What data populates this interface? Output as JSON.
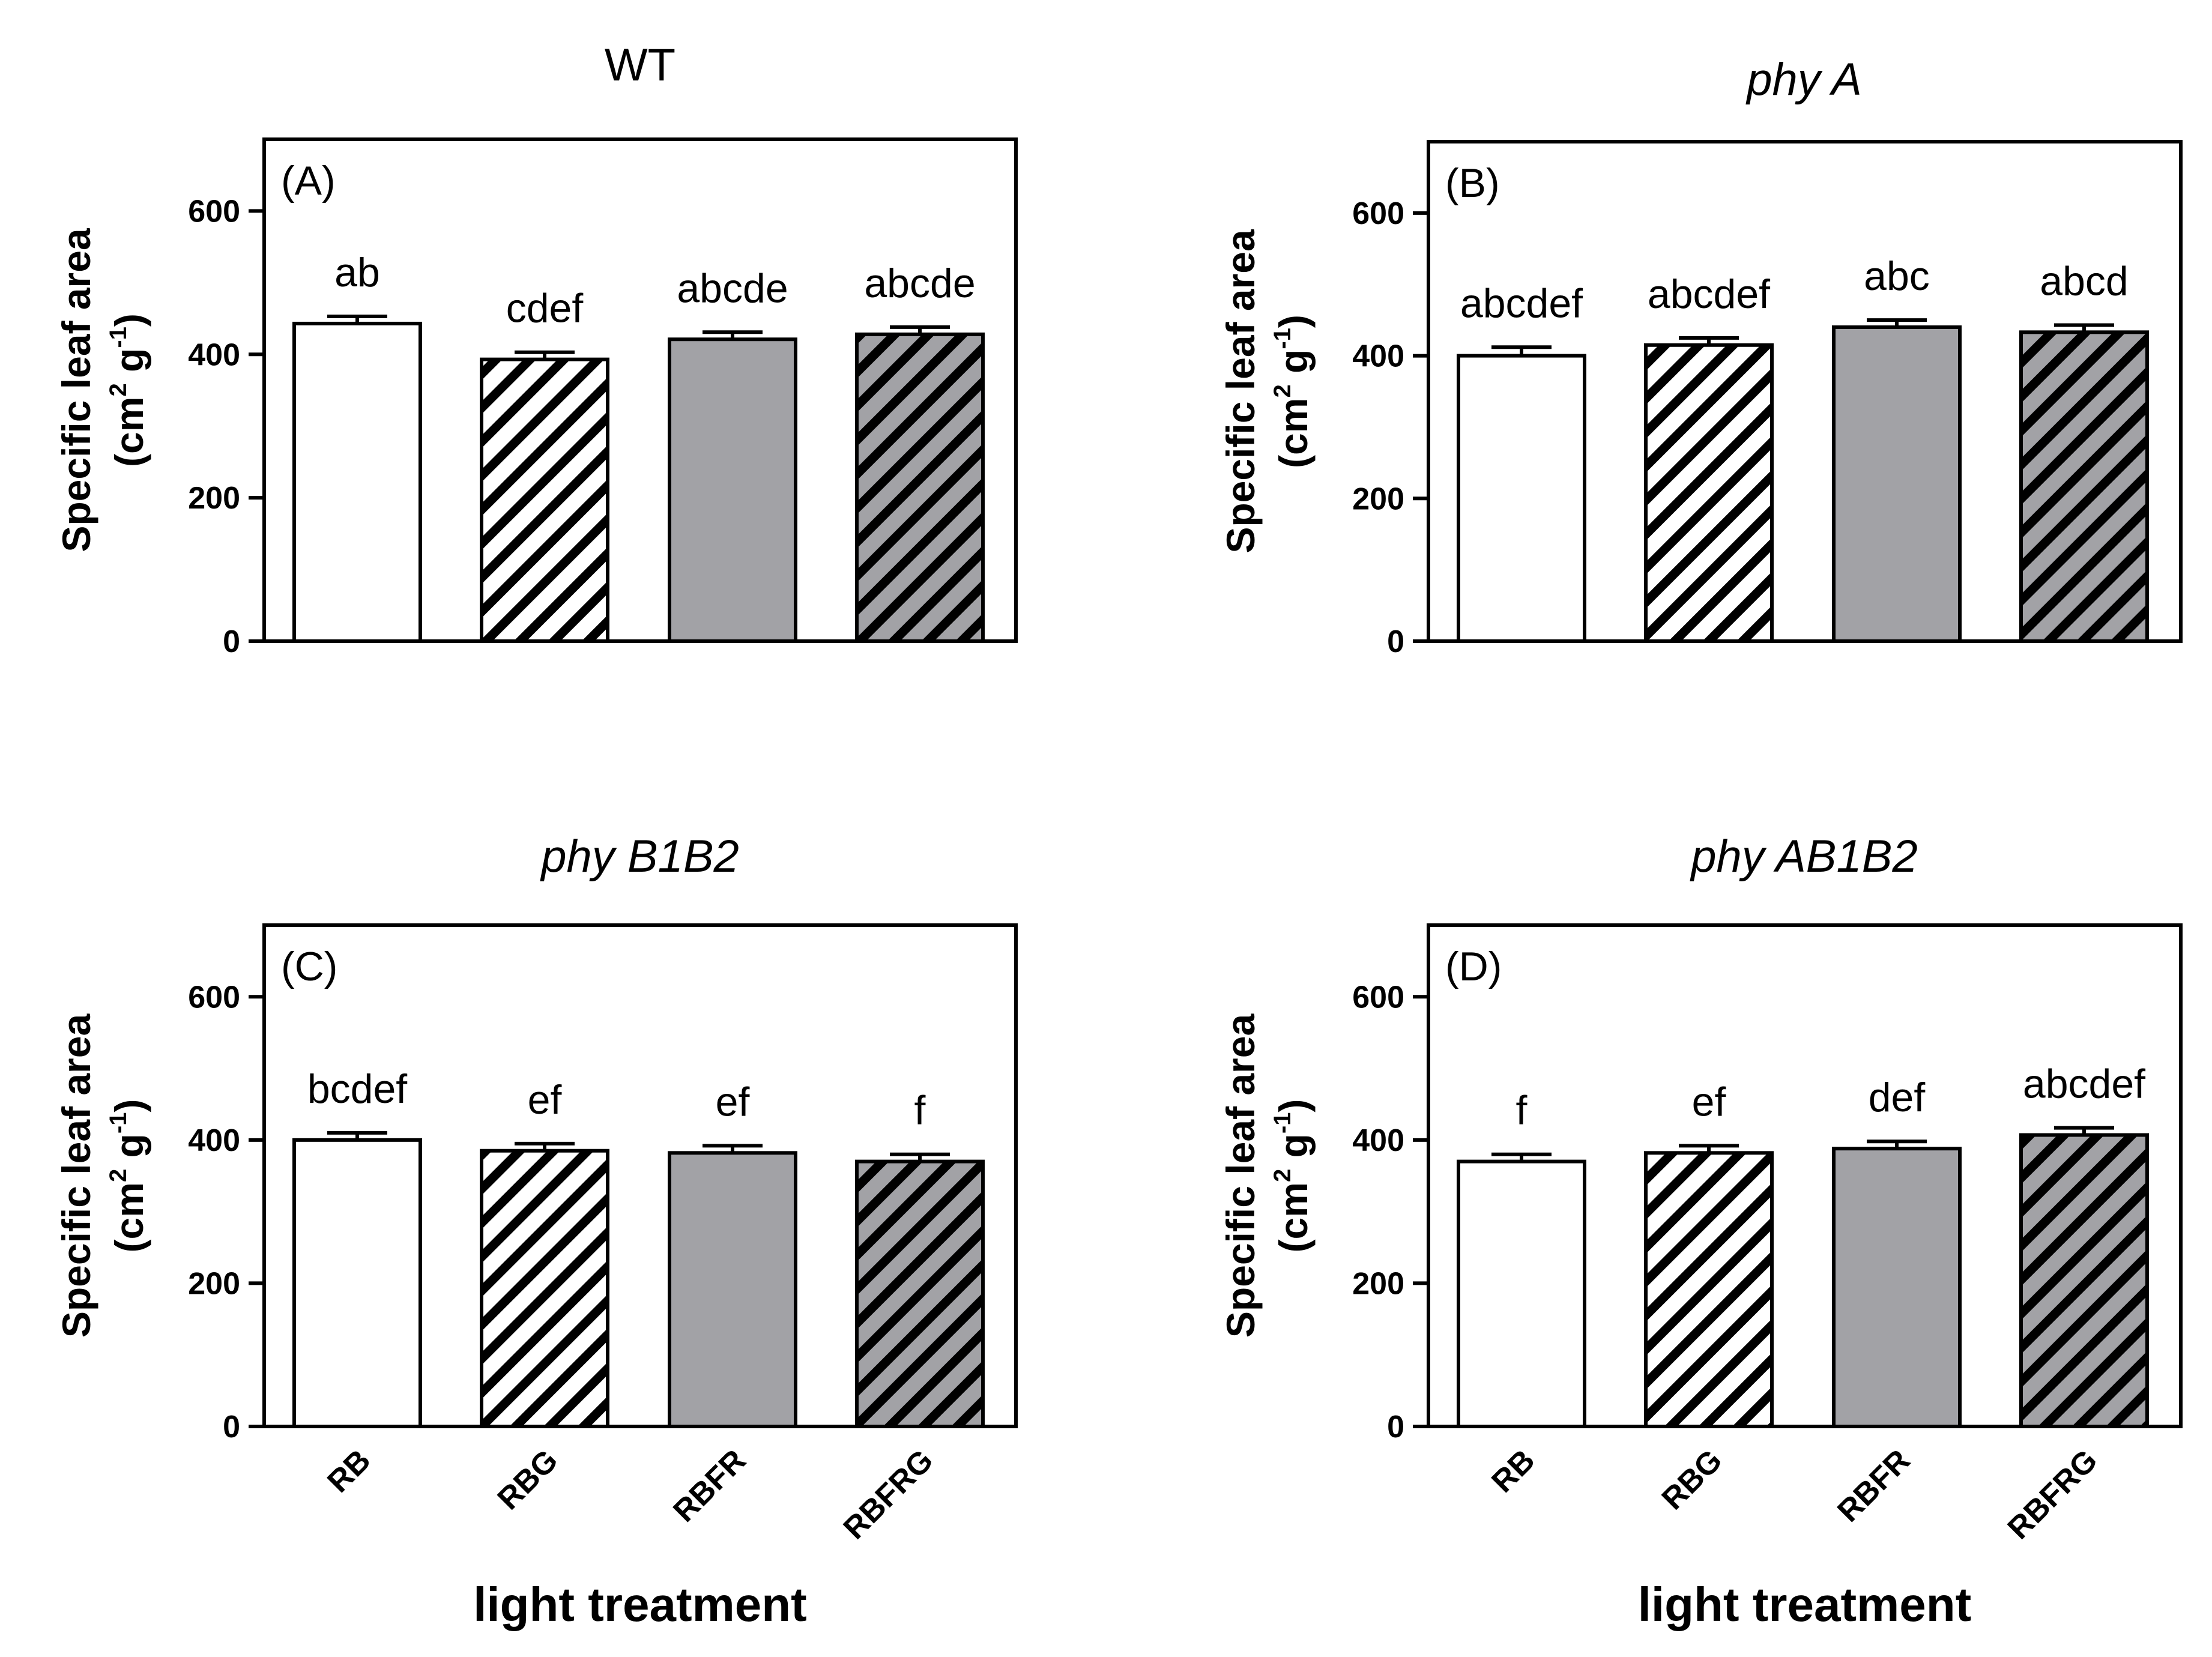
{
  "figure": {
    "y_axis_label_line1": "Specific leaf area",
    "y_axis_label_line2_prefix": "(cm",
    "y_axis_label_line2_sup1": "2",
    "y_axis_label_line2_mid": " g",
    "y_axis_label_line2_sup2": "-1",
    "y_axis_label_line2_suffix": ")",
    "x_axis_label": "light treatment"
  },
  "colors": {
    "white_fill": "#ffffff",
    "gray_fill": "#a2a2a6",
    "stripe_color": "#000000",
    "axis_color": "#000000"
  },
  "chart_data": [
    {
      "type": "bar",
      "title": "WT",
      "title_italic": false,
      "panel_label": "(A)",
      "xlabel": "light treatment",
      "ylabel": "Specific leaf area (cm2 g-1)",
      "ylim": [
        0,
        700
      ],
      "yticks": [
        0,
        200,
        400,
        600
      ],
      "categories": [
        "RB",
        "RBG",
        "RBFR",
        "RBFRG"
      ],
      "values": [
        443,
        393,
        421,
        428
      ],
      "errors": [
        10,
        10,
        10,
        10
      ],
      "letters": [
        "ab",
        "cdef",
        "abcde",
        "abcde"
      ],
      "fills": [
        "white",
        "white-hatch",
        "gray",
        "gray-hatch"
      ],
      "show_x_tick_labels": false,
      "show_xlabel": false
    },
    {
      "type": "bar",
      "title": "phy A",
      "title_italic": true,
      "panel_label": "(B)",
      "xlabel": "light treatment",
      "ylabel": "Specific leaf area (cm2 g-1)",
      "ylim": [
        0,
        700
      ],
      "yticks": [
        0,
        200,
        400,
        600
      ],
      "categories": [
        "RB",
        "RBG",
        "RBFR",
        "RBFRG"
      ],
      "values": [
        400,
        415,
        440,
        433
      ],
      "errors": [
        12,
        10,
        10,
        10
      ],
      "letters": [
        "abcdef",
        "abcdef",
        "abc",
        "abcd"
      ],
      "fills": [
        "white",
        "white-hatch",
        "gray",
        "gray-hatch"
      ],
      "show_x_tick_labels": false,
      "show_xlabel": false
    },
    {
      "type": "bar",
      "title": "phy B1B2",
      "title_italic": true,
      "panel_label": "(C)",
      "xlabel": "light treatment",
      "ylabel": "Specific leaf area (cm2 g-1)",
      "ylim": [
        0,
        700
      ],
      "yticks": [
        0,
        200,
        400,
        600
      ],
      "categories": [
        "RB",
        "RBG",
        "RBFR",
        "RBFRG"
      ],
      "values": [
        400,
        385,
        382,
        370
      ],
      "errors": [
        10,
        10,
        10,
        10
      ],
      "letters": [
        "bcdef",
        "ef",
        "ef",
        "f"
      ],
      "fills": [
        "white",
        "white-hatch",
        "gray",
        "gray-hatch"
      ],
      "show_x_tick_labels": true,
      "show_xlabel": true
    },
    {
      "type": "bar",
      "title": "phy AB1B2",
      "title_italic": true,
      "panel_label": "(D)",
      "xlabel": "light treatment",
      "ylabel": "Specific leaf area (cm2 g-1)",
      "ylim": [
        0,
        700
      ],
      "yticks": [
        0,
        200,
        400,
        600
      ],
      "categories": [
        "RB",
        "RBG",
        "RBFR",
        "RBFRG"
      ],
      "values": [
        370,
        382,
        388,
        407
      ],
      "errors": [
        10,
        10,
        10,
        10
      ],
      "letters": [
        "f",
        "ef",
        "def",
        "abcdef"
      ],
      "fills": [
        "white",
        "white-hatch",
        "gray",
        "gray-hatch"
      ],
      "show_x_tick_labels": true,
      "show_xlabel": true
    }
  ]
}
